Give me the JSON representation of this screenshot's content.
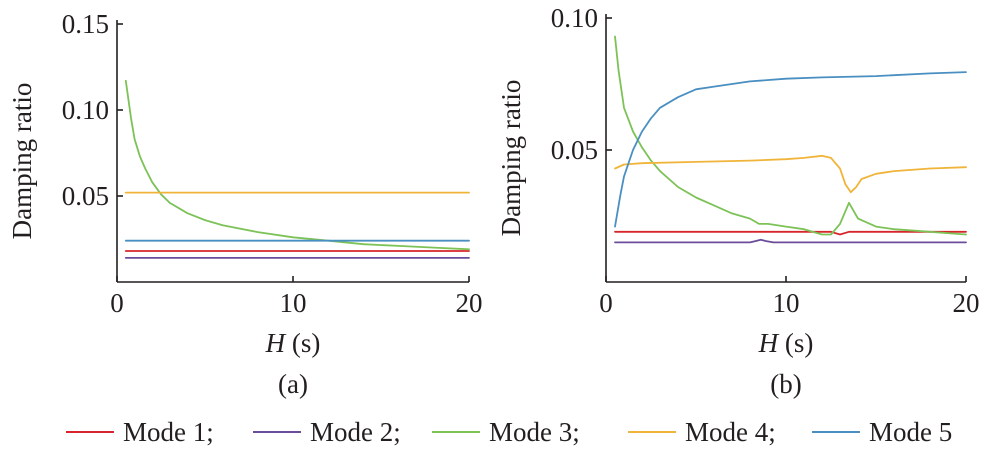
{
  "chart_data": [
    {
      "type": "line",
      "panel_label": "(a)",
      "ylabel": "Damping ratio",
      "xlabel_var": "H",
      "xlabel_unit": " (s)",
      "xlim": [
        0,
        20
      ],
      "ylim": [
        0.0,
        0.15
      ],
      "xticks": [
        0,
        10,
        20
      ],
      "xtick_labels": [
        "0",
        "10",
        "20"
      ],
      "yticks": [
        0.05,
        0.1,
        0.15
      ],
      "ytick_labels": [
        "0.05",
        "0.10",
        "0.15"
      ],
      "grid": false,
      "series": [
        {
          "name": "Mode 1",
          "color": "#d7262b",
          "x": [
            0.5,
            20
          ],
          "y": [
            0.018,
            0.018
          ]
        },
        {
          "name": "Mode 2",
          "color": "#6b4c9a",
          "x": [
            0.5,
            20
          ],
          "y": [
            0.014,
            0.014
          ]
        },
        {
          "name": "Mode 3",
          "color": "#7cc257",
          "x": [
            0.5,
            0.8,
            1.0,
            1.3,
            1.6,
            2.0,
            2.5,
            3.0,
            4.0,
            5.0,
            6.0,
            8.0,
            10.0,
            12.0,
            14.0,
            16.0,
            18.0,
            20.0
          ],
          "y": [
            0.117,
            0.095,
            0.083,
            0.073,
            0.066,
            0.058,
            0.051,
            0.046,
            0.04,
            0.036,
            0.033,
            0.029,
            0.026,
            0.024,
            0.022,
            0.021,
            0.02,
            0.019
          ]
        },
        {
          "name": "Mode 4",
          "color": "#f0b43a",
          "x": [
            0.5,
            20
          ],
          "y": [
            0.052,
            0.052
          ]
        },
        {
          "name": "Mode 5",
          "color": "#4a8fc1",
          "x": [
            0.5,
            20
          ],
          "y": [
            0.024,
            0.024
          ]
        }
      ]
    },
    {
      "type": "line",
      "panel_label": "(b)",
      "ylabel": "Damping ratio",
      "xlabel_var": "H",
      "xlabel_unit": " (s)",
      "xlim": [
        0,
        20
      ],
      "ylim": [
        0.0,
        0.1
      ],
      "xticks": [
        0,
        10,
        20
      ],
      "xtick_labels": [
        "0",
        "10",
        "20"
      ],
      "yticks": [
        0.05,
        0.1
      ],
      "ytick_labels": [
        "0.05",
        "0.10"
      ],
      "grid": false,
      "series": [
        {
          "name": "Mode 1",
          "color": "#d7262b",
          "x": [
            0.5,
            8.0,
            12.0,
            12.5,
            13.0,
            13.5,
            14.0,
            20.0
          ],
          "y": [
            0.019,
            0.019,
            0.019,
            0.019,
            0.018,
            0.019,
            0.019,
            0.019
          ]
        },
        {
          "name": "Mode 2",
          "color": "#6b4c9a",
          "x": [
            0.5,
            8.0,
            8.3,
            8.6,
            8.9,
            9.3,
            20.0
          ],
          "y": [
            0.015,
            0.015,
            0.0155,
            0.016,
            0.0155,
            0.015,
            0.015
          ]
        },
        {
          "name": "Mode 3",
          "color": "#7cc257",
          "x": [
            0.5,
            0.7,
            1.0,
            1.5,
            2.0,
            2.5,
            3.0,
            4.0,
            5.0,
            6.0,
            7.0,
            8.0,
            8.5,
            9.0,
            10.0,
            11.0,
            12.0,
            12.5,
            13.0,
            13.5,
            14.0,
            15.0,
            16.0,
            18.0,
            20.0
          ],
          "y": [
            0.093,
            0.08,
            0.066,
            0.057,
            0.051,
            0.046,
            0.042,
            0.036,
            0.032,
            0.029,
            0.026,
            0.024,
            0.022,
            0.022,
            0.021,
            0.02,
            0.018,
            0.018,
            0.022,
            0.03,
            0.024,
            0.021,
            0.02,
            0.019,
            0.018
          ]
        },
        {
          "name": "Mode 4",
          "color": "#f0b43a",
          "x": [
            0.5,
            1.0,
            2.0,
            5.0,
            8.0,
            10.0,
            11.0,
            12.0,
            12.5,
            13.0,
            13.3,
            13.6,
            13.9,
            14.2,
            15.0,
            16.0,
            18.0,
            20.0
          ],
          "y": [
            0.043,
            0.0445,
            0.045,
            0.0455,
            0.046,
            0.0465,
            0.047,
            0.0478,
            0.047,
            0.043,
            0.037,
            0.034,
            0.036,
            0.039,
            0.041,
            0.042,
            0.043,
            0.0435
          ]
        },
        {
          "name": "Mode 5",
          "color": "#4a8fc1",
          "x": [
            0.5,
            0.8,
            1.0,
            1.5,
            2.0,
            2.5,
            3.0,
            4.0,
            5.0,
            6.0,
            8.0,
            10.0,
            12.0,
            15.0,
            18.0,
            20.0
          ],
          "y": [
            0.021,
            0.033,
            0.04,
            0.05,
            0.057,
            0.062,
            0.066,
            0.07,
            0.073,
            0.074,
            0.076,
            0.077,
            0.0775,
            0.078,
            0.079,
            0.0795
          ]
        }
      ]
    }
  ],
  "legend": {
    "entries": [
      "Mode 1;",
      "Mode 2;",
      "Mode 3;",
      "Mode 4;",
      "Mode 5"
    ],
    "colors": [
      "#d7262b",
      "#6b4c9a",
      "#7cc257",
      "#f0b43a",
      "#4a8fc1"
    ]
  }
}
